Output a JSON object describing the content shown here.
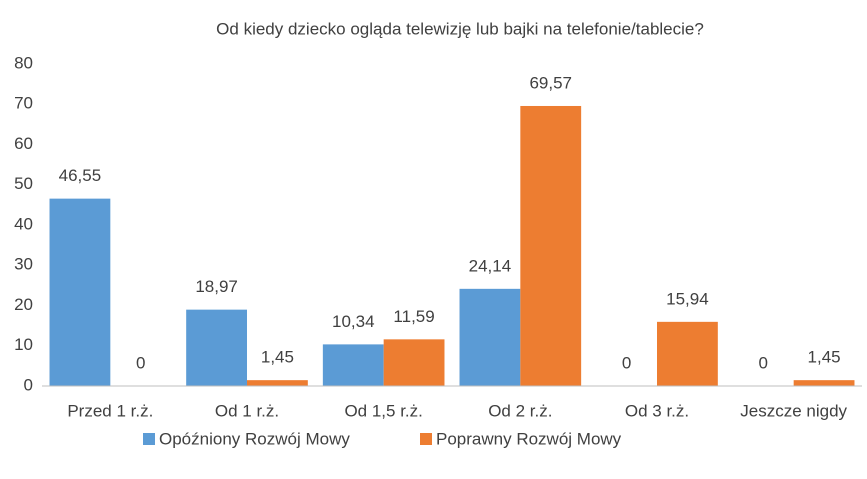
{
  "chart_data": {
    "type": "bar",
    "title": "Od kiedy dziecko ogląda telewizję lub bajki na telefonie/tablecie?",
    "categories": [
      "Przed 1 r.ż.",
      "Od 1 r.ż.",
      "Od 1,5 r.ż.",
      "Od 2 r.ż.",
      "Od 3 r.ż.",
      "Jeszcze nigdy"
    ],
    "series": [
      {
        "name": "Opóźniony Rozwój Mowy",
        "color": "#5b9bd5",
        "values": [
          46.55,
          18.97,
          10.34,
          24.14,
          0,
          0
        ],
        "value_labels": [
          "46,55",
          "18,97",
          "10,34",
          "24,14",
          "0",
          "0"
        ]
      },
      {
        "name": "Poprawny Rozwój Mowy",
        "color": "#ed7d31",
        "values": [
          0,
          1.45,
          11.59,
          69.57,
          15.94,
          1.45
        ],
        "value_labels": [
          "0",
          "1,45",
          "11,59",
          "69,57",
          "15,94",
          "1,45"
        ]
      }
    ],
    "ylim": [
      0,
      80
    ],
    "yticks": [
      0,
      10,
      20,
      30,
      40,
      50,
      60,
      70,
      80
    ],
    "grid": false,
    "legend": "bottom"
  }
}
